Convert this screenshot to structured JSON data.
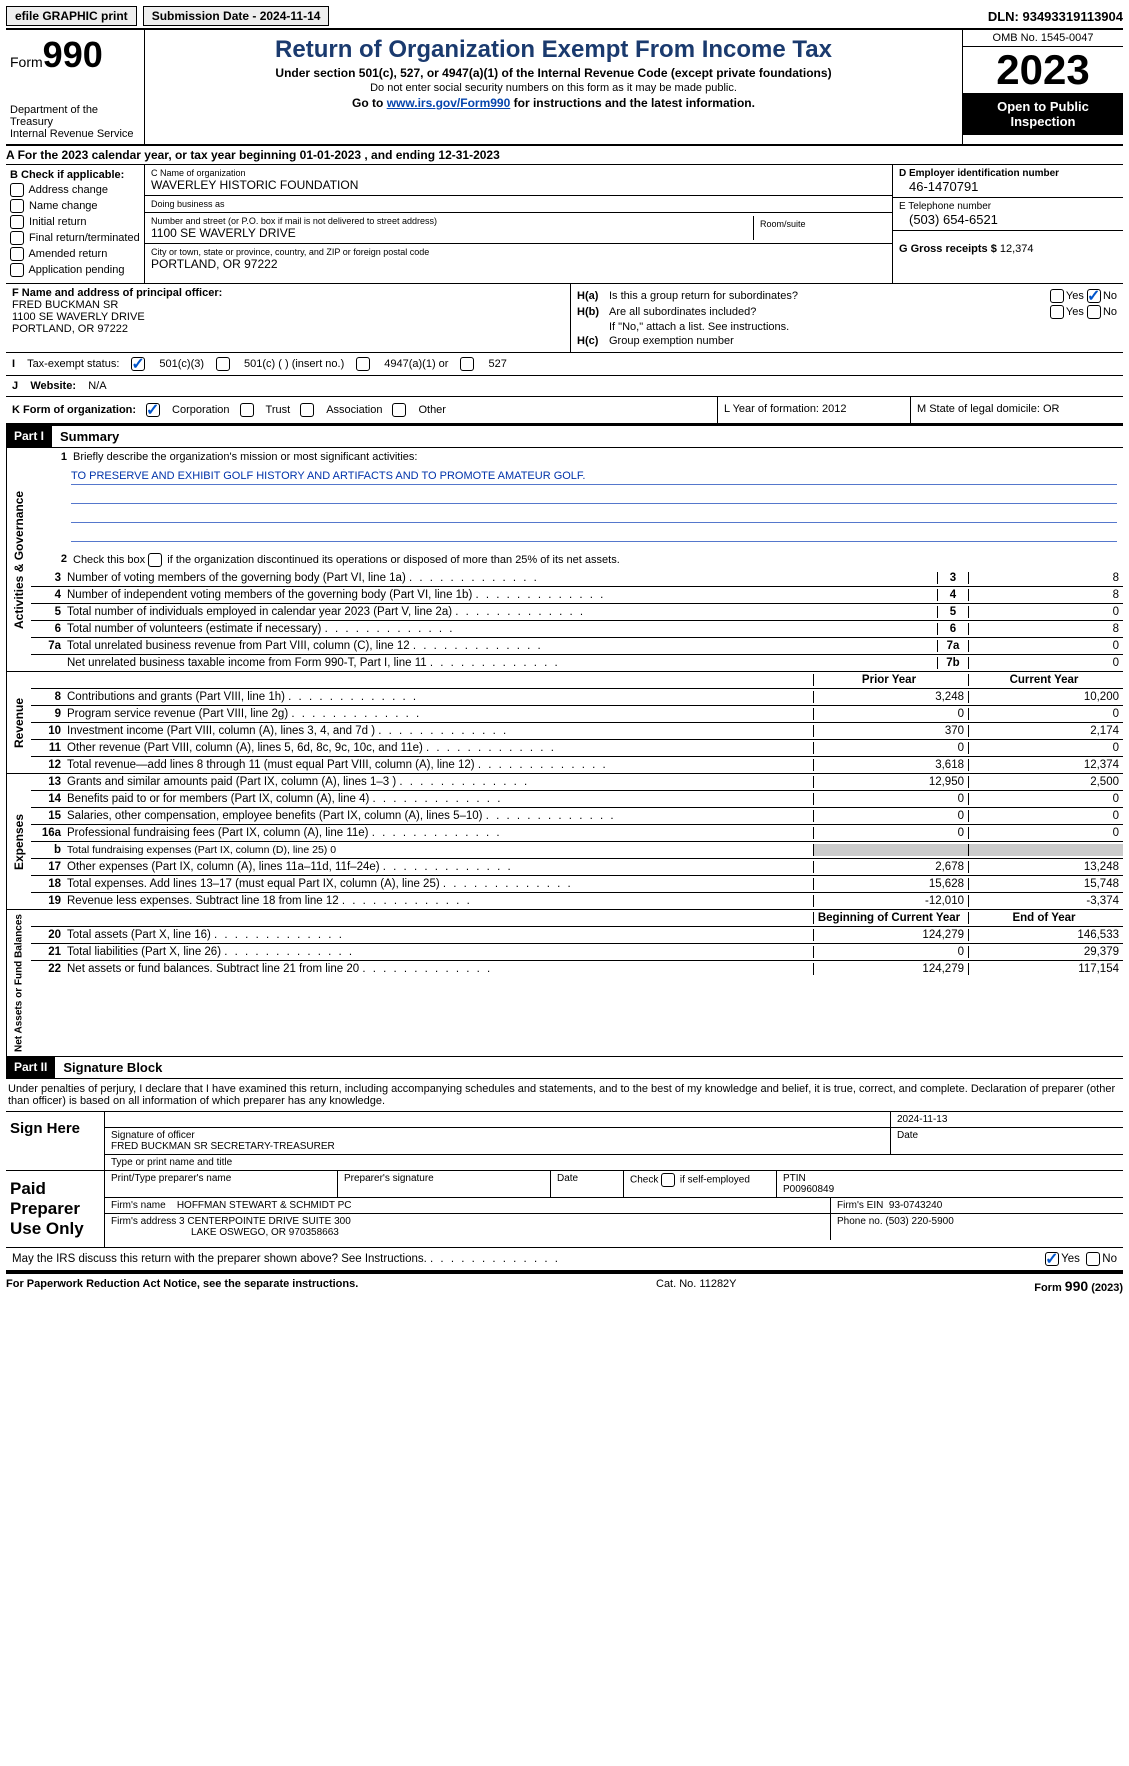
{
  "topbar": {
    "efile": "efile GRAPHIC print",
    "submission": "Submission Date - 2024-11-14",
    "dln": "DLN: 93493319113904"
  },
  "header": {
    "form_prefix": "Form",
    "form_num": "990",
    "dept1": "Department of the Treasury",
    "dept2": "Internal Revenue Service",
    "title": "Return of Organization Exempt From Income Tax",
    "sub1": "Under section 501(c), 527, or 4947(a)(1) of the Internal Revenue Code (except private foundations)",
    "sub2": "Do not enter social security numbers on this form as it may be made public.",
    "sub3_pre": "Go to ",
    "sub3_link": "www.irs.gov/Form990",
    "sub3_post": " for instructions and the latest information.",
    "omb": "OMB No. 1545-0047",
    "year": "2023",
    "inspection": "Open to Public Inspection"
  },
  "lineA": "For the 2023 calendar year, or tax year beginning 01-01-2023   , and ending 12-31-2023",
  "boxB": {
    "title": "B Check if applicable:",
    "opts": [
      "Address change",
      "Name change",
      "Initial return",
      "Final return/terminated",
      "Amended return",
      "Application pending"
    ]
  },
  "boxC": {
    "name_lbl": "C Name of organization",
    "name": "WAVERLEY HISTORIC FOUNDATION",
    "dba_lbl": "Doing business as",
    "dba": "",
    "street_lbl": "Number and street (or P.O. box if mail is not delivered to street address)",
    "street": "1100 SE WAVERLY DRIVE",
    "room_lbl": "Room/suite",
    "city_lbl": "City or town, state or province, country, and ZIP or foreign postal code",
    "city": "PORTLAND, OR  97222"
  },
  "boxD": {
    "lbl": "D Employer identification number",
    "val": "46-1470791"
  },
  "boxE": {
    "lbl": "E Telephone number",
    "val": "(503) 654-6521"
  },
  "boxG": {
    "lbl": "G Gross receipts $",
    "val": "12,374"
  },
  "boxF": {
    "lbl": "F  Name and address of principal officer:",
    "name": "FRED BUCKMAN SR",
    "street": "1100 SE WAVERLY DRIVE",
    "city": "PORTLAND, OR  97222"
  },
  "boxH": {
    "a_left": "H(a)",
    "a_txt": "Is this a group return for subordinates?",
    "b_left": "H(b)",
    "b_txt": "Are all subordinates included?",
    "b_note": "If \"No,\" attach a list. See instructions.",
    "c_left": "H(c)",
    "c_txt": "Group exemption number"
  },
  "boxI": {
    "lbl": "Tax-exempt status:",
    "o1": "501(c)(3)",
    "o2": "501(c) (  ) (insert no.)",
    "o3": "4947(a)(1) or",
    "o4": "527"
  },
  "boxJ": {
    "lbl": "Website:",
    "val": "N/A"
  },
  "boxK": {
    "lbl": "K Form of organization:",
    "o1": "Corporation",
    "o2": "Trust",
    "o3": "Association",
    "o4": "Other"
  },
  "boxL": "L Year of formation: 2012",
  "boxM": "M State of legal domicile: OR",
  "part1": {
    "hdr": "Part I",
    "title": "Summary",
    "vert_ag": "Activities & Governance",
    "vert_rev": "Revenue",
    "vert_exp": "Expenses",
    "vert_na": "Net Assets or Fund Balances",
    "q1_lbl": "Briefly describe the organization's mission or most significant activities:",
    "q1_val": "TO PRESERVE AND EXHIBIT GOLF HISTORY AND ARTIFACTS AND TO PROMOTE AMATEUR GOLF.",
    "q2": "Check this box     if the organization discontinued its operations or disposed of more than 25% of its net assets.",
    "prior_hdr": "Prior Year",
    "curr_hdr": "Current Year",
    "begin_hdr": "Beginning of Current Year",
    "end_hdr": "End of Year",
    "rows_gov": [
      {
        "n": "3",
        "l": "Number of voting members of the governing body (Part VI, line 1a)",
        "box": "3",
        "v": "8"
      },
      {
        "n": "4",
        "l": "Number of independent voting members of the governing body (Part VI, line 1b)",
        "box": "4",
        "v": "8"
      },
      {
        "n": "5",
        "l": "Total number of individuals employed in calendar year 2023 (Part V, line 2a)",
        "box": "5",
        "v": "0"
      },
      {
        "n": "6",
        "l": "Total number of volunteers (estimate if necessary)",
        "box": "6",
        "v": "8"
      },
      {
        "n": "7a",
        "l": "Total unrelated business revenue from Part VIII, column (C), line 12",
        "box": "7a",
        "v": "0"
      },
      {
        "n": "",
        "l": "Net unrelated business taxable income from Form 990-T, Part I, line 11",
        "box": "7b",
        "v": "0"
      }
    ],
    "rows_rev": [
      {
        "n": "8",
        "l": "Contributions and grants (Part VIII, line 1h)",
        "p": "3,248",
        "c": "10,200"
      },
      {
        "n": "9",
        "l": "Program service revenue (Part VIII, line 2g)",
        "p": "0",
        "c": "0"
      },
      {
        "n": "10",
        "l": "Investment income (Part VIII, column (A), lines 3, 4, and 7d )",
        "p": "370",
        "c": "2,174"
      },
      {
        "n": "11",
        "l": "Other revenue (Part VIII, column (A), lines 5, 6d, 8c, 9c, 10c, and 11e)",
        "p": "0",
        "c": "0"
      },
      {
        "n": "12",
        "l": "Total revenue—add lines 8 through 11 (must equal Part VIII, column (A), line 12)",
        "p": "3,618",
        "c": "12,374"
      }
    ],
    "rows_exp": [
      {
        "n": "13",
        "l": "Grants and similar amounts paid (Part IX, column (A), lines 1–3 )",
        "p": "12,950",
        "c": "2,500"
      },
      {
        "n": "14",
        "l": "Benefits paid to or for members (Part IX, column (A), line 4)",
        "p": "0",
        "c": "0"
      },
      {
        "n": "15",
        "l": "Salaries, other compensation, employee benefits (Part IX, column (A), lines 5–10)",
        "p": "0",
        "c": "0"
      },
      {
        "n": "16a",
        "l": "Professional fundraising fees (Part IX, column (A), line 11e)",
        "p": "0",
        "c": "0"
      },
      {
        "n": "b",
        "l": "Total fundraising expenses (Part IX, column (D), line 25) 0",
        "grey": true
      },
      {
        "n": "17",
        "l": "Other expenses (Part IX, column (A), lines 11a–11d, 11f–24e)",
        "p": "2,678",
        "c": "13,248"
      },
      {
        "n": "18",
        "l": "Total expenses. Add lines 13–17 (must equal Part IX, column (A), line 25)",
        "p": "15,628",
        "c": "15,748"
      },
      {
        "n": "19",
        "l": "Revenue less expenses. Subtract line 18 from line 12",
        "p": "-12,010",
        "c": "-3,374"
      }
    ],
    "rows_na": [
      {
        "n": "20",
        "l": "Total assets (Part X, line 16)",
        "p": "124,279",
        "c": "146,533"
      },
      {
        "n": "21",
        "l": "Total liabilities (Part X, line 26)",
        "p": "0",
        "c": "29,379"
      },
      {
        "n": "22",
        "l": "Net assets or fund balances. Subtract line 21 from line 20",
        "p": "124,279",
        "c": "117,154"
      }
    ]
  },
  "part2": {
    "hdr": "Part II",
    "title": "Signature Block",
    "decl": "Under penalties of perjury, I declare that I have examined this return, including accompanying schedules and statements, and to the best of my knowledge and belief, it is true, correct, and complete. Declaration of preparer (other than officer) is based on all information of which preparer has any knowledge.",
    "sign_here": "Sign Here",
    "sig_officer_lbl": "Signature of officer",
    "sig_officer": "FRED BUCKMAN SR  SECRETARY-TREASURER",
    "sig_type_lbl": "Type or print name and title",
    "sig_date_lbl": "Date",
    "sig_date": "2024-11-13",
    "paid": "Paid Preparer Use Only",
    "prep_name_lbl": "Print/Type preparer's name",
    "prep_sig_lbl": "Preparer's signature",
    "date_lbl": "Date",
    "self_emp": "Check      if self-employed",
    "ptin_lbl": "PTIN",
    "ptin": "P00960849",
    "firm_name_lbl": "Firm's name",
    "firm_name": "HOFFMAN STEWART & SCHMIDT PC",
    "firm_ein_lbl": "Firm's EIN",
    "firm_ein": "93-0743240",
    "firm_addr_lbl": "Firm's address",
    "firm_addr1": "3 CENTERPOINTE DRIVE SUITE 300",
    "firm_addr2": "LAKE OSWEGO, OR  970358663",
    "phone_lbl": "Phone no.",
    "phone": "(503) 220-5900",
    "discuss": "May the IRS discuss this return with the preparer shown above? See Instructions."
  },
  "footer": {
    "left": "For Paperwork Reduction Act Notice, see the separate instructions.",
    "mid": "Cat. No. 11282Y",
    "right": "Form 990 (2023)"
  },
  "labels": {
    "yes": "Yes",
    "no": "No"
  }
}
